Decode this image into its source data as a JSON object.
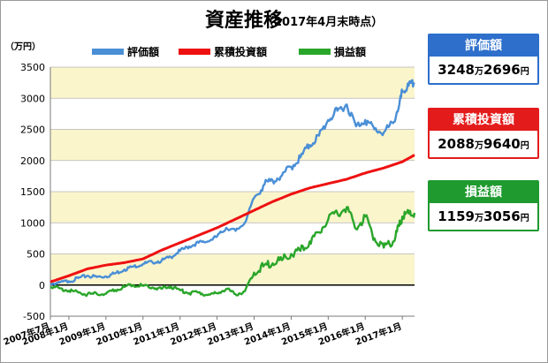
{
  "chart_data": {
    "type": "line",
    "title": "資産推移",
    "subtitle": "（2017年4月末時点）",
    "unit_label": "（万円）",
    "ylim": [
      -500,
      3500
    ],
    "y_ticks": [
      "-500",
      "0",
      "500",
      "1000",
      "1500",
      "2000",
      "2500",
      "3000",
      "3500"
    ],
    "x_ticks": [
      "2007年7月",
      "2008年1月",
      "2009年1月",
      "2010年1月",
      "2011年1月",
      "2012年1月",
      "2013年1月",
      "2014年1月",
      "2015年1月",
      "2016年1月",
      "2017年1月"
    ],
    "x_range": [
      "2007-07",
      "2017-04"
    ],
    "grid": true,
    "legend_position": "top",
    "series": [
      {
        "name": "評価額",
        "color": "#4a8fd6",
        "values": [
          [
            2007.5,
            20
          ],
          [
            2007.75,
            40
          ],
          [
            2008.0,
            60
          ],
          [
            2008.25,
            110
          ],
          [
            2008.5,
            150
          ],
          [
            2008.75,
            130
          ],
          [
            2009.0,
            140
          ],
          [
            2009.25,
            190
          ],
          [
            2009.5,
            250
          ],
          [
            2009.75,
            300
          ],
          [
            2010.0,
            340
          ],
          [
            2010.25,
            370
          ],
          [
            2010.5,
            390
          ],
          [
            2010.75,
            450
          ],
          [
            2011.0,
            550
          ],
          [
            2011.25,
            620
          ],
          [
            2011.5,
            680
          ],
          [
            2011.75,
            700
          ],
          [
            2012.0,
            780
          ],
          [
            2012.25,
            920
          ],
          [
            2012.5,
            870
          ],
          [
            2012.75,
            1000
          ],
          [
            2013.0,
            1400
          ],
          [
            2013.25,
            1600
          ],
          [
            2013.5,
            1680
          ],
          [
            2013.75,
            1760
          ],
          [
            2014.0,
            1900
          ],
          [
            2014.25,
            2050
          ],
          [
            2014.5,
            2250
          ],
          [
            2014.75,
            2400
          ],
          [
            2015.0,
            2650
          ],
          [
            2015.25,
            2800
          ],
          [
            2015.5,
            2900
          ],
          [
            2015.75,
            2550
          ],
          [
            2016.0,
            2650
          ],
          [
            2016.25,
            2500
          ],
          [
            2016.5,
            2450
          ],
          [
            2016.75,
            2600
          ],
          [
            2016.92,
            2900
          ],
          [
            2017.0,
            3100
          ],
          [
            2017.17,
            3200
          ],
          [
            2017.33,
            3249
          ]
        ]
      },
      {
        "name": "累積投資額",
        "color": "#ee1111",
        "values": [
          [
            2007.5,
            50
          ],
          [
            2008.0,
            150
          ],
          [
            2008.5,
            260
          ],
          [
            2009.0,
            320
          ],
          [
            2009.5,
            360
          ],
          [
            2010.0,
            420
          ],
          [
            2010.5,
            560
          ],
          [
            2011.0,
            680
          ],
          [
            2011.5,
            800
          ],
          [
            2012.0,
            920
          ],
          [
            2012.5,
            1060
          ],
          [
            2013.0,
            1200
          ],
          [
            2013.5,
            1340
          ],
          [
            2014.0,
            1460
          ],
          [
            2014.5,
            1560
          ],
          [
            2015.0,
            1630
          ],
          [
            2015.5,
            1700
          ],
          [
            2016.0,
            1800
          ],
          [
            2016.5,
            1880
          ],
          [
            2017.0,
            1980
          ],
          [
            2017.33,
            2089
          ]
        ]
      },
      {
        "name": "損益額",
        "color": "#2aa62a",
        "values": [
          [
            2007.5,
            -30
          ],
          [
            2007.75,
            -50
          ],
          [
            2008.0,
            -90
          ],
          [
            2008.25,
            -120
          ],
          [
            2008.5,
            -150
          ],
          [
            2008.75,
            -140
          ],
          [
            2009.0,
            -140
          ],
          [
            2009.25,
            -80
          ],
          [
            2009.5,
            -30
          ],
          [
            2009.75,
            0
          ],
          [
            2010.0,
            -10
          ],
          [
            2010.25,
            -40
          ],
          [
            2010.5,
            -60
          ],
          [
            2010.75,
            -20
          ],
          [
            2011.0,
            -80
          ],
          [
            2011.25,
            -130
          ],
          [
            2011.5,
            -120
          ],
          [
            2011.75,
            -160
          ],
          [
            2012.0,
            -130
          ],
          [
            2012.25,
            -60
          ],
          [
            2012.5,
            -150
          ],
          [
            2012.75,
            -100
          ],
          [
            2013.0,
            200
          ],
          [
            2013.25,
            300
          ],
          [
            2013.5,
            350
          ],
          [
            2013.75,
            400
          ],
          [
            2014.0,
            500
          ],
          [
            2014.25,
            550
          ],
          [
            2014.5,
            700
          ],
          [
            2014.75,
            850
          ],
          [
            2015.0,
            1050
          ],
          [
            2015.25,
            1150
          ],
          [
            2015.5,
            1250
          ],
          [
            2015.75,
            900
          ],
          [
            2016.0,
            1100
          ],
          [
            2016.25,
            750
          ],
          [
            2016.5,
            600
          ],
          [
            2016.75,
            700
          ],
          [
            2016.92,
            950
          ],
          [
            2017.0,
            1100
          ],
          [
            2017.17,
            1150
          ],
          [
            2017.33,
            1159
          ]
        ]
      }
    ],
    "callouts": [
      {
        "label": "評価額",
        "value_main": "3248",
        "value_unit1": "万",
        "value_sub": "2696",
        "value_unit2": "円",
        "color": "#2d6fcb"
      },
      {
        "label": "累積投資額",
        "value_main": "2088",
        "value_unit1": "万",
        "value_sub": "9640",
        "value_unit2": "円",
        "color": "#e31b1b"
      },
      {
        "label": "損益額",
        "value_main": "1159",
        "value_unit1": "万",
        "value_sub": "3056",
        "value_unit2": "円",
        "color": "#1f9a2f"
      }
    ],
    "band_color": "#fbf5cc",
    "zero_line_color": "#000000",
    "grid_color": "#b5b5b5"
  }
}
